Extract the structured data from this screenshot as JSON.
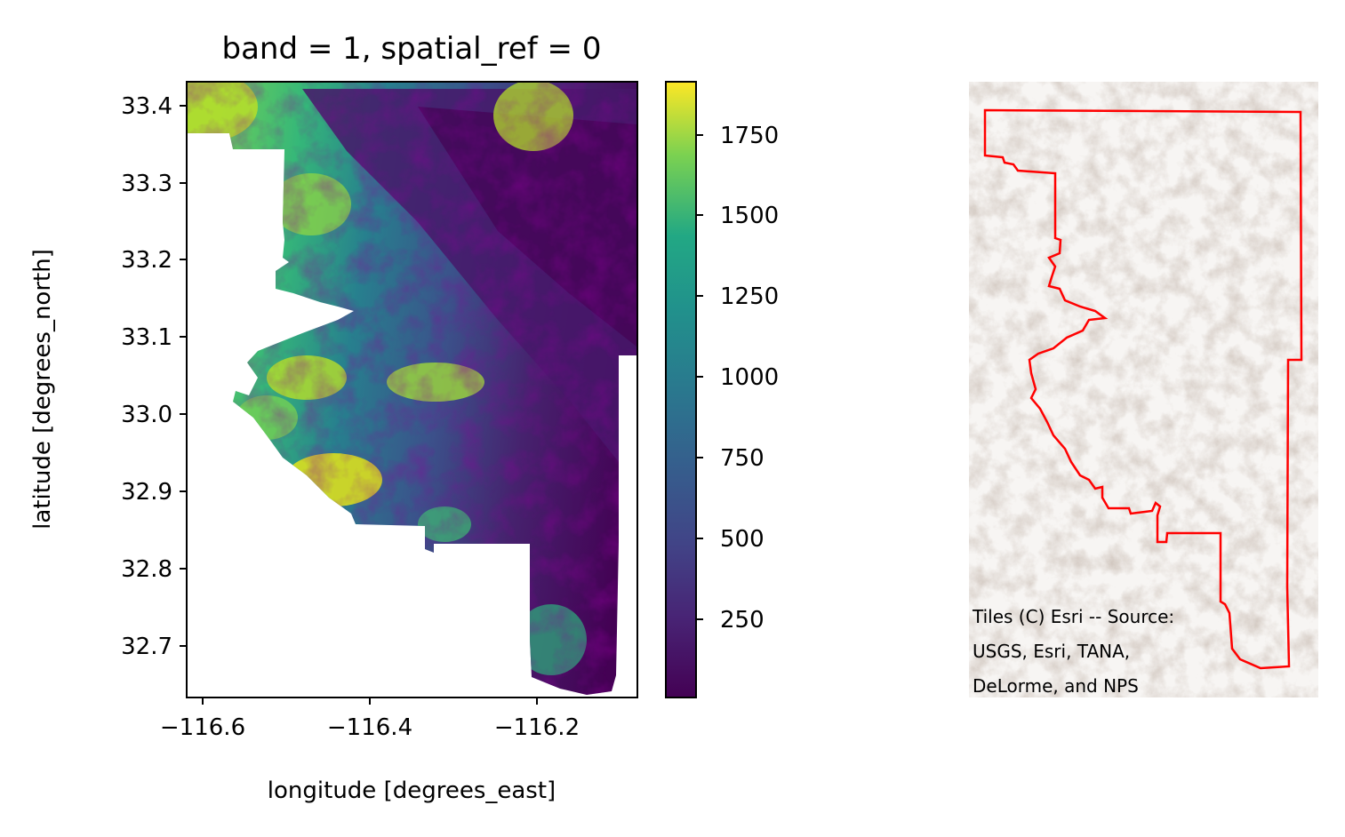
{
  "title": "band = 1, spatial_ref = 0",
  "xlabel": "longitude [degrees_east]",
  "ylabel": "latitude [degrees_north]",
  "x_ticks": [
    "−116.6",
    "−116.4",
    "−116.2"
  ],
  "y_ticks": [
    "33.4",
    "33.3",
    "33.2",
    "33.1",
    "33.0",
    "32.9",
    "32.8",
    "32.7"
  ],
  "colorbar": {
    "colormap": "viridis",
    "ticks": [
      "250",
      "500",
      "750",
      "1000",
      "1250",
      "1500",
      "1750"
    ]
  },
  "basemap": {
    "boundary_color": "#ff0000",
    "attribution_lines": [
      "Tiles (C) Esri -- Source:",
      "USGS, Esri, TANA,",
      "DeLorme, and NPS"
    ]
  },
  "chart_data": {
    "type": "heatmap",
    "title": "band = 1, spatial_ref = 0",
    "xlabel": "longitude [degrees_east]",
    "ylabel": "latitude [degrees_north]",
    "xlim": [
      -116.62,
      -116.08
    ],
    "ylim": [
      32.63,
      33.43
    ],
    "x_ticks": [
      -116.6,
      -116.4,
      -116.2
    ],
    "y_ticks": [
      33.4,
      33.3,
      33.2,
      33.1,
      33.0,
      32.9,
      32.8,
      32.7
    ],
    "colorbar_ticks": [
      250,
      500,
      750,
      1000,
      1250,
      1500,
      1750
    ],
    "colorbar_range": [
      0,
      1900
    ]
  }
}
